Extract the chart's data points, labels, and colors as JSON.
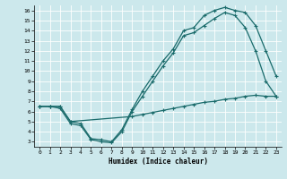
{
  "xlabel": "Humidex (Indice chaleur)",
  "bg_color": "#cce8ec",
  "line_color": "#1a6b6b",
  "grid_color": "#ffffff",
  "xlim": [
    -0.5,
    23.5
  ],
  "ylim": [
    2.5,
    16.5
  ],
  "xticks": [
    0,
    1,
    2,
    3,
    4,
    5,
    6,
    7,
    8,
    9,
    10,
    11,
    12,
    13,
    14,
    15,
    16,
    17,
    18,
    19,
    20,
    21,
    22,
    23
  ],
  "yticks": [
    3,
    4,
    5,
    6,
    7,
    8,
    9,
    10,
    11,
    12,
    13,
    14,
    15,
    16
  ],
  "curve1_x": [
    0,
    1,
    2,
    3,
    4,
    5,
    6,
    7,
    8,
    9,
    10,
    11,
    12,
    13,
    14,
    15,
    16,
    17,
    18,
    19,
    20,
    21,
    22,
    23
  ],
  "curve1_y": [
    6.5,
    6.5,
    6.5,
    5.0,
    4.8,
    3.3,
    3.2,
    3.0,
    4.2,
    6.2,
    8.0,
    9.5,
    11.0,
    12.2,
    14.0,
    14.3,
    15.5,
    16.0,
    16.3,
    16.0,
    15.8,
    14.5,
    12.0,
    9.5
  ],
  "curve2_x": [
    0,
    1,
    2,
    3,
    4,
    5,
    6,
    7,
    8,
    9,
    10,
    11,
    12,
    13,
    14,
    15,
    16,
    17,
    18,
    19,
    20,
    21,
    22,
    23
  ],
  "curve2_y": [
    6.5,
    6.5,
    6.3,
    4.8,
    4.6,
    3.2,
    3.0,
    2.9,
    4.0,
    6.0,
    7.5,
    9.0,
    10.5,
    11.8,
    13.5,
    13.8,
    14.5,
    15.2,
    15.8,
    15.5,
    14.3,
    12.0,
    9.0,
    7.5
  ],
  "curve3_x": [
    0,
    1,
    2,
    3,
    9,
    10,
    11,
    12,
    13,
    14,
    15,
    16,
    17,
    18,
    19,
    20,
    21,
    22,
    23
  ],
  "curve3_y": [
    6.5,
    6.5,
    6.5,
    5.0,
    5.5,
    5.7,
    5.9,
    6.1,
    6.3,
    6.5,
    6.7,
    6.9,
    7.0,
    7.2,
    7.3,
    7.5,
    7.6,
    7.5,
    7.5
  ]
}
